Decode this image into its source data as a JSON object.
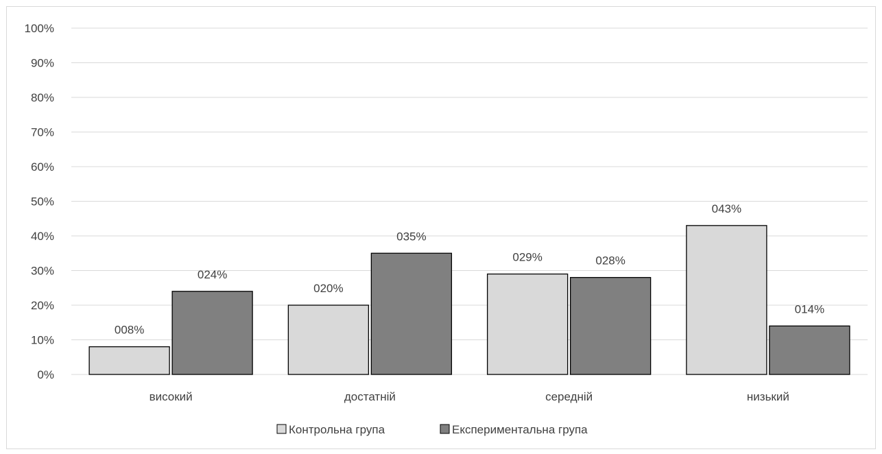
{
  "chart_data": {
    "type": "bar",
    "categories": [
      "високий",
      "достатній",
      "середній",
      "низький"
    ],
    "series": [
      {
        "name": "Контрольна група",
        "values": [
          8,
          20,
          29,
          43
        ],
        "labels": [
          "008%",
          "020%",
          "029%",
          "043%"
        ],
        "color": "#d9d9d9"
      },
      {
        "name": "Експериментальна група",
        "values": [
          24,
          35,
          28,
          14
        ],
        "labels": [
          "024%",
          "035%",
          "028%",
          "014%"
        ],
        "color": "#808080"
      }
    ],
    "yticks": [
      "0%",
      "10%",
      "20%",
      "30%",
      "40%",
      "50%",
      "60%",
      "70%",
      "80%",
      "90%",
      "100%"
    ],
    "ylim": [
      0,
      100
    ],
    "grid": true,
    "legend": "bottom",
    "bar_stroke": "#000000",
    "grid_color": "#d9d9d9"
  }
}
